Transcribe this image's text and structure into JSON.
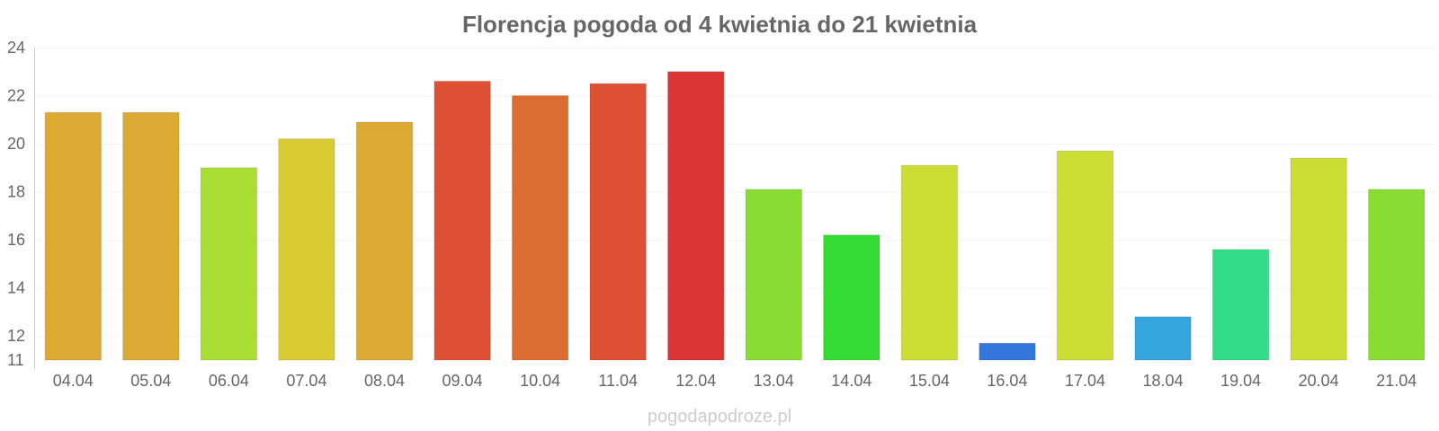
{
  "chart_data": {
    "type": "bar",
    "title": "Florencja pogoda od 4 kwietnia do 21 kwietnia",
    "xlabel": "",
    "ylabel": "",
    "ylim": [
      11,
      24
    ],
    "yticks": [
      "11",
      "12",
      "14",
      "16",
      "18",
      "20",
      "22",
      "24"
    ],
    "categories": [
      "04.04",
      "05.04",
      "06.04",
      "07.04",
      "08.04",
      "09.04",
      "10.04",
      "11.04",
      "12.04",
      "13.04",
      "14.04",
      "15.04",
      "16.04",
      "17.04",
      "18.04",
      "19.04",
      "20.04",
      "21.04"
    ],
    "values": [
      21.3,
      21.3,
      19.0,
      20.2,
      20.9,
      22.6,
      22.0,
      22.5,
      23.0,
      18.1,
      16.2,
      19.1,
      11.7,
      19.7,
      12.8,
      15.6,
      19.4,
      18.1
    ],
    "colors": [
      "#dca933",
      "#dca933",
      "#aadd33",
      "#d9cc33",
      "#dca933",
      "#dd5033",
      "#dd6e33",
      "#dd5033",
      "#db3434",
      "#88dd33",
      "#33dd33",
      "#ccdd33",
      "#3377dd",
      "#ccdd33",
      "#33a6dd",
      "#33dd88",
      "#ccdd33",
      "#88dd33"
    ],
    "grid": true,
    "credit": "pogodapodroze.pl"
  }
}
